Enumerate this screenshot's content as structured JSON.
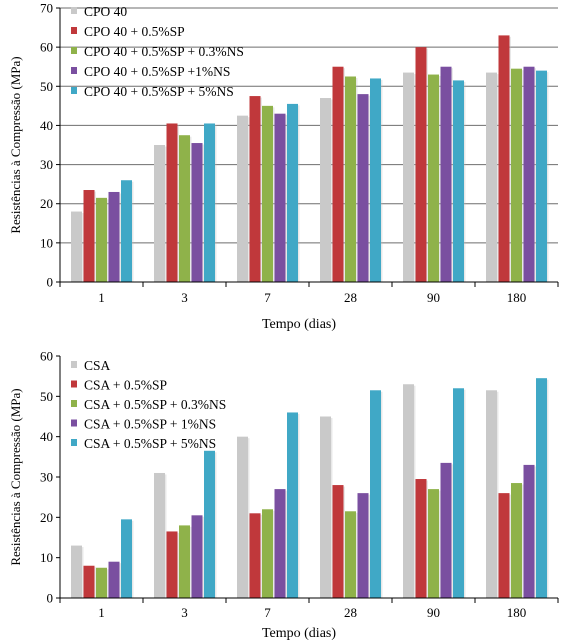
{
  "colors": {
    "gray": "#c9c9c9",
    "red": "#c0383b",
    "green": "#8fb24a",
    "purple": "#7a4fa0",
    "cyan": "#40a8c6"
  },
  "chart_data": [
    {
      "type": "bar",
      "categories": [
        "1",
        "3",
        "7",
        "28",
        "90",
        "180"
      ],
      "xlabel": "Tempo (dias)",
      "ylabel": "Resistências à Compressão (MPa)",
      "ylim": [
        0,
        70
      ],
      "yticks": [
        0,
        10,
        20,
        30,
        40,
        50,
        60,
        70
      ],
      "grid": true,
      "legend": "top-left",
      "series": [
        {
          "name": "CPO 40",
          "color": "gray",
          "values": [
            18,
            35,
            42.5,
            47,
            53.5,
            53.5
          ]
        },
        {
          "name": "CPO 40 + 0.5%SP",
          "color": "red",
          "values": [
            23.5,
            40.5,
            47.5,
            55,
            60,
            63
          ]
        },
        {
          "name": "CPO 40 + 0.5%SP + 0.3%NS",
          "color": "green",
          "values": [
            21.5,
            37.5,
            45,
            52.5,
            53,
            54.5
          ]
        },
        {
          "name": "CPO 40 + 0.5%SP +1%NS",
          "color": "purple",
          "values": [
            23,
            35.5,
            43,
            48,
            55,
            55
          ]
        },
        {
          "name": "CPO 40 + 0.5%SP + 5%NS",
          "color": "cyan",
          "values": [
            26,
            40.5,
            45.5,
            52,
            51.5,
            54
          ]
        }
      ]
    },
    {
      "type": "bar",
      "categories": [
        "1",
        "3",
        "7",
        "28",
        "90",
        "180"
      ],
      "xlabel": "Tempo (dias)",
      "ylabel": "Resistências à Compressão (MPa)",
      "ylim": [
        0,
        60
      ],
      "yticks": [
        0,
        10,
        20,
        30,
        40,
        50,
        60
      ],
      "grid": false,
      "legend": "top-left",
      "series": [
        {
          "name": "CSA",
          "color": "gray",
          "values": [
            13,
            31,
            40,
            45,
            53,
            51.5
          ]
        },
        {
          "name": "CSA + 0.5%SP",
          "color": "red",
          "values": [
            8,
            16.5,
            21,
            28,
            29.5,
            26
          ]
        },
        {
          "name": "CSA + 0.5%SP + 0.3%NS",
          "color": "green",
          "values": [
            7.5,
            18,
            22,
            21.5,
            27,
            28.5
          ]
        },
        {
          "name": "CSA + 0.5%SP + 1%NS",
          "color": "purple",
          "values": [
            9,
            20.5,
            27,
            26,
            33.5,
            33
          ]
        },
        {
          "name": "CSA + 0.5%SP + 5%NS",
          "color": "cyan",
          "values": [
            19.5,
            36.5,
            46,
            51.5,
            52,
            54.5
          ]
        }
      ]
    }
  ]
}
